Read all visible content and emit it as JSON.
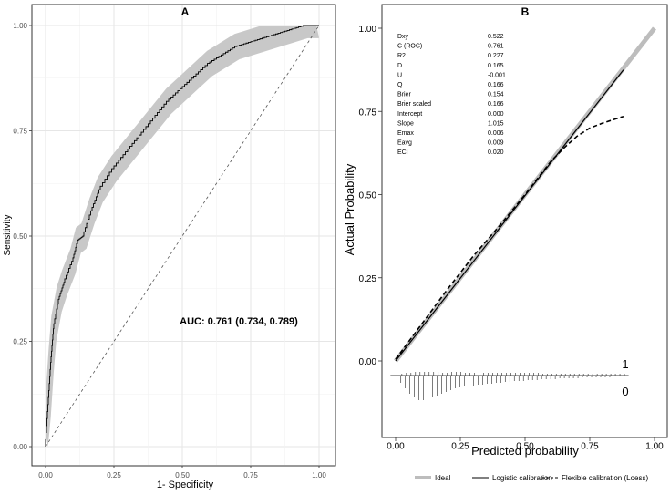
{
  "chart_data": [
    {
      "type": "line",
      "panel_label": "A",
      "xlabel": "1- Specificity",
      "ylabel": "Sensitivity",
      "xlim": [
        0,
        1
      ],
      "ylim": [
        0,
        1
      ],
      "x_ticks": [
        "0.00",
        "0.25",
        "0.50",
        "0.75",
        "1.00"
      ],
      "y_ticks": [
        "0.00",
        "0.25",
        "0.50",
        "0.75",
        "1.00"
      ],
      "grid": true,
      "annotation": "AUC: 0.761 (0.734, 0.789)",
      "colors": {
        "band": "#c8c8c8",
        "curve": "#000000",
        "reference": "#555555",
        "panel_bg": "#ffffff",
        "grid": "#ebebeb"
      },
      "series": [
        {
          "kind": "roc_with_ci_band",
          "x": [
            0,
            0.01,
            0.02,
            0.03,
            0.05,
            0.07,
            0.1,
            0.12,
            0.14,
            0.17,
            0.2,
            0.25,
            0.3,
            0.35,
            0.4,
            0.45,
            0.5,
            0.55,
            0.6,
            0.65,
            0.7,
            0.75,
            0.8,
            0.85,
            0.9,
            0.95,
            1
          ],
          "y": [
            0,
            0.1,
            0.2,
            0.28,
            0.35,
            0.39,
            0.44,
            0.49,
            0.5,
            0.56,
            0.61,
            0.66,
            0.7,
            0.74,
            0.78,
            0.82,
            0.85,
            0.88,
            0.91,
            0.93,
            0.95,
            0.96,
            0.97,
            0.98,
            0.99,
            1,
            1
          ],
          "ci_half_width": 0.03
        },
        {
          "kind": "reference_diagonal",
          "x": [
            0,
            1
          ],
          "y": [
            0,
            1
          ]
        }
      ]
    },
    {
      "type": "line",
      "panel_label": "B",
      "xlabel": "Predicted probability",
      "ylabel": "Actual Probability",
      "xlim": [
        0,
        1
      ],
      "ylim": [
        0,
        1
      ],
      "x_ticks": [
        "0.00",
        "0.25",
        "0.50",
        "0.75",
        "1.00"
      ],
      "y_ticks": [
        "0.00",
        "0.25",
        "0.50",
        "0.75",
        "1.00"
      ],
      "grid": false,
      "colors": {
        "ideal": "#bdbdbd",
        "logistic": "#000000",
        "loess": "#000000"
      },
      "stats": [
        {
          "name": "Dxy",
          "value": "0.522"
        },
        {
          "name": "C (ROC)",
          "value": "0.761"
        },
        {
          "name": "R2",
          "value": "0.227"
        },
        {
          "name": "D",
          "value": "0.165"
        },
        {
          "name": "U",
          "value": "-0.001"
        },
        {
          "name": "Q",
          "value": "0.166"
        },
        {
          "name": "Brier",
          "value": "0.154"
        },
        {
          "name": "Brier scaled",
          "value": "0.166"
        },
        {
          "name": "Intercept",
          "value": "0.000"
        },
        {
          "name": "Slope",
          "value": "1.015"
        },
        {
          "name": "Emax",
          "value": "0.006"
        },
        {
          "name": "Eavg",
          "value": "0.009"
        },
        {
          "name": "ECI",
          "value": "0.020"
        }
      ],
      "series": [
        {
          "name": "Ideal",
          "x": [
            0,
            1
          ],
          "y": [
            0,
            1
          ]
        },
        {
          "name": "Logistic calibration",
          "x": [
            0,
            0.88
          ],
          "y": [
            0,
            0.875
          ]
        },
        {
          "name": "Flexible calibration (Loess)",
          "x": [
            0,
            0.1,
            0.2,
            0.3,
            0.4,
            0.5,
            0.6,
            0.65,
            0.7,
            0.75,
            0.8,
            0.88
          ],
          "y": [
            0.005,
            0.11,
            0.215,
            0.315,
            0.405,
            0.5,
            0.6,
            0.64,
            0.675,
            0.7,
            0.715,
            0.735
          ]
        }
      ],
      "legend_position": "bottom",
      "rug_labels": {
        "top": "1",
        "bottom": "0"
      },
      "rug_heights": [
        8,
        14,
        20,
        24,
        27,
        27,
        25,
        24,
        22,
        20,
        18,
        16,
        14,
        13,
        12,
        12,
        11,
        10,
        10,
        9,
        9,
        8,
        8,
        7,
        7,
        6,
        6,
        6,
        5,
        5,
        5,
        4,
        4,
        4,
        4,
        3,
        3,
        3,
        3,
        3,
        2,
        2,
        2,
        2,
        2,
        2,
        2,
        1,
        1,
        1
      ]
    }
  ]
}
